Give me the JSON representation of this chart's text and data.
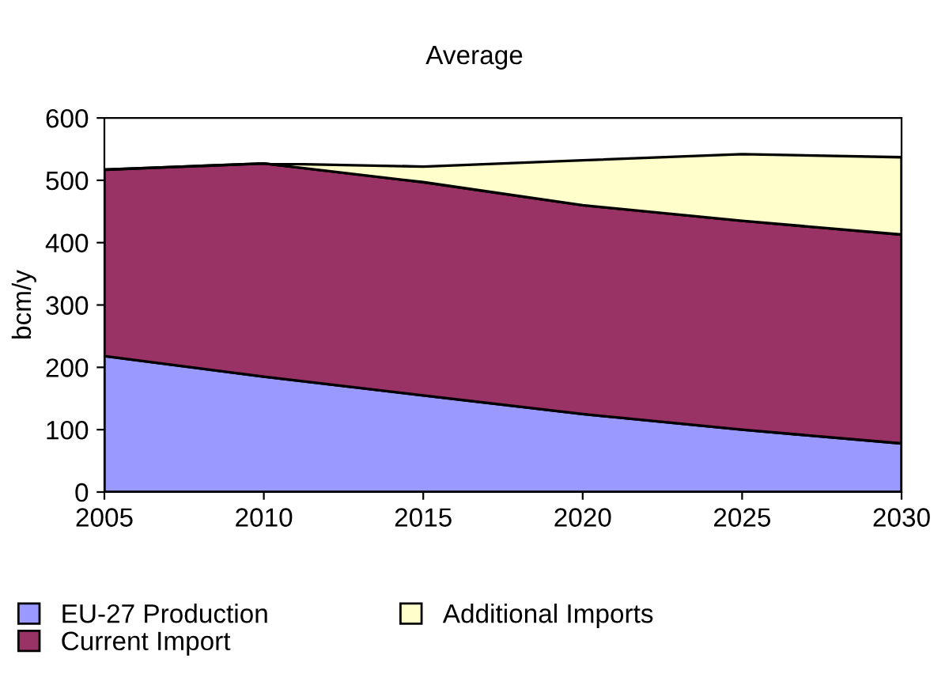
{
  "chart_data": {
    "type": "area",
    "title": "Average",
    "ylabel": "bcm/y",
    "stacked": true,
    "x": [
      2005,
      2010,
      2015,
      2020,
      2025,
      2030
    ],
    "series": [
      {
        "name": "EU-27 Production",
        "color": "#9999ff",
        "values": [
          218,
          185,
          155,
          125,
          100,
          78
        ]
      },
      {
        "name": "Current Import",
        "color": "#993366",
        "values": [
          299,
          342,
          342,
          335,
          335,
          335
        ]
      },
      {
        "name": "Additional Imports",
        "color": "#ffffcc",
        "values": [
          0,
          0,
          25,
          72,
          107,
          124
        ]
      }
    ],
    "xlim": [
      2005,
      2030
    ],
    "xticks": [
      2005,
      2010,
      2015,
      2020,
      2025,
      2030
    ],
    "ylim": [
      0,
      600
    ],
    "yticks": [
      0,
      100,
      200,
      300,
      400,
      500,
      600
    ],
    "grid": false,
    "legend": "bottom"
  }
}
